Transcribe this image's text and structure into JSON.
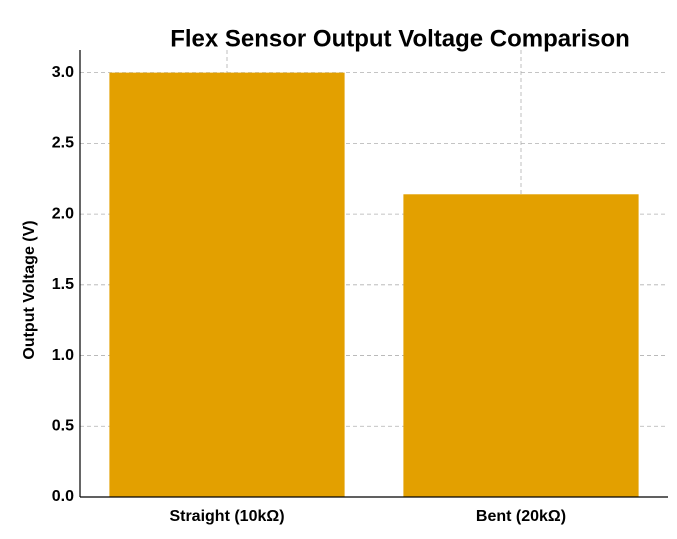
{
  "chart_data": {
    "type": "bar",
    "title": "Flex Sensor Output Voltage Comparison",
    "y_label": "Output Voltage (V)",
    "categories": [
      "Straight (10kΩ)",
      "Bent (20kΩ)"
    ],
    "values": [
      3.0,
      2.14
    ],
    "color": "#e3a000",
    "ylim": [
      0,
      3.16
    ],
    "yticks": [
      {
        "value": 0,
        "label": "0.0"
      },
      {
        "value": 0.5,
        "label": "0.5"
      },
      {
        "value": 1,
        "label": "1.0"
      },
      {
        "value": 1.5,
        "label": "1.5"
      },
      {
        "value": 2,
        "label": "2.0"
      },
      {
        "value": 2.5,
        "label": "2.5"
      },
      {
        "value": 3,
        "label": "3.0"
      }
    ],
    "grid": true
  }
}
